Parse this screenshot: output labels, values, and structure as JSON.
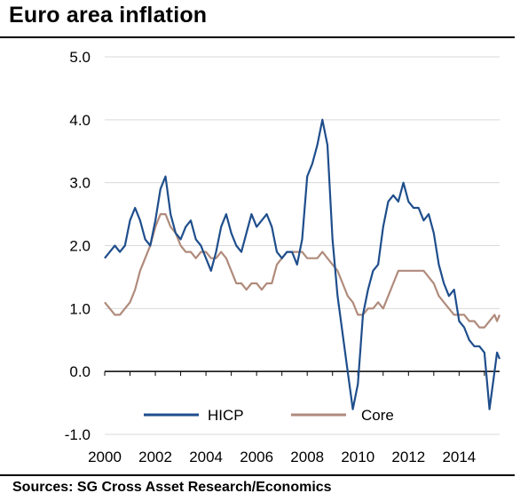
{
  "title": "Euro area inflation",
  "source": "Sources: SG Cross Asset Research/Economics",
  "colors": {
    "hicp": "#1f4e8c",
    "core": "#b08b7c",
    "grid": "#d9d9d9",
    "axis": "#000000"
  },
  "chart_data": {
    "type": "line",
    "title": "Euro area inflation",
    "xlabel": "",
    "ylabel": "",
    "xlim": [
      2000,
      2015.6
    ],
    "ylim": [
      -1.0,
      5.0
    ],
    "x_ticks": [
      "2000",
      "2002",
      "2004",
      "2006",
      "2008",
      "2010",
      "2012",
      "2014"
    ],
    "y_ticks": [
      "5.0",
      "4.0",
      "3.0",
      "2.0",
      "1.0",
      "0.0",
      "-1.0"
    ],
    "grid": "horizontal",
    "legend": "bottom-center",
    "series": [
      {
        "name": "HICP",
        "points": [
          [
            2000.0,
            1.8
          ],
          [
            2000.2,
            1.9
          ],
          [
            2000.4,
            2.0
          ],
          [
            2000.6,
            1.9
          ],
          [
            2000.8,
            2.0
          ],
          [
            2001.0,
            2.4
          ],
          [
            2001.2,
            2.6
          ],
          [
            2001.4,
            2.4
          ],
          [
            2001.6,
            2.1
          ],
          [
            2001.8,
            2.0
          ],
          [
            2002.0,
            2.4
          ],
          [
            2002.2,
            2.9
          ],
          [
            2002.4,
            3.1
          ],
          [
            2002.6,
            2.5
          ],
          [
            2002.8,
            2.2
          ],
          [
            2003.0,
            2.1
          ],
          [
            2003.2,
            2.3
          ],
          [
            2003.4,
            2.4
          ],
          [
            2003.6,
            2.1
          ],
          [
            2003.8,
            2.0
          ],
          [
            2004.0,
            1.8
          ],
          [
            2004.2,
            1.6
          ],
          [
            2004.4,
            1.9
          ],
          [
            2004.6,
            2.3
          ],
          [
            2004.8,
            2.5
          ],
          [
            2005.0,
            2.2
          ],
          [
            2005.2,
            2.0
          ],
          [
            2005.4,
            1.9
          ],
          [
            2005.6,
            2.2
          ],
          [
            2005.8,
            2.5
          ],
          [
            2006.0,
            2.3
          ],
          [
            2006.2,
            2.4
          ],
          [
            2006.4,
            2.5
          ],
          [
            2006.6,
            2.3
          ],
          [
            2006.8,
            1.9
          ],
          [
            2007.0,
            1.8
          ],
          [
            2007.2,
            1.9
          ],
          [
            2007.4,
            1.9
          ],
          [
            2007.6,
            1.7
          ],
          [
            2007.8,
            2.1
          ],
          [
            2008.0,
            3.1
          ],
          [
            2008.2,
            3.3
          ],
          [
            2008.4,
            3.6
          ],
          [
            2008.6,
            4.0
          ],
          [
            2008.8,
            3.6
          ],
          [
            2009.0,
            2.1
          ],
          [
            2009.2,
            1.2
          ],
          [
            2009.4,
            0.6
          ],
          [
            2009.6,
            0.0
          ],
          [
            2009.8,
            -0.6
          ],
          [
            2010.0,
            -0.2
          ],
          [
            2010.2,
            0.9
          ],
          [
            2010.4,
            1.3
          ],
          [
            2010.6,
            1.6
          ],
          [
            2010.8,
            1.7
          ],
          [
            2011.0,
            2.3
          ],
          [
            2011.2,
            2.7
          ],
          [
            2011.4,
            2.8
          ],
          [
            2011.6,
            2.7
          ],
          [
            2011.8,
            3.0
          ],
          [
            2012.0,
            2.7
          ],
          [
            2012.2,
            2.6
          ],
          [
            2012.4,
            2.6
          ],
          [
            2012.6,
            2.4
          ],
          [
            2012.8,
            2.5
          ],
          [
            2013.0,
            2.2
          ],
          [
            2013.2,
            1.7
          ],
          [
            2013.4,
            1.4
          ],
          [
            2013.6,
            1.2
          ],
          [
            2013.8,
            1.3
          ],
          [
            2014.0,
            0.8
          ],
          [
            2014.2,
            0.7
          ],
          [
            2014.4,
            0.5
          ],
          [
            2014.6,
            0.4
          ],
          [
            2014.8,
            0.4
          ],
          [
            2015.0,
            0.3
          ],
          [
            2015.2,
            -0.6
          ],
          [
            2015.4,
            0.0
          ],
          [
            2015.5,
            0.3
          ],
          [
            2015.6,
            0.2
          ]
        ]
      },
      {
        "name": "Core",
        "points": [
          [
            2000.0,
            1.1
          ],
          [
            2000.2,
            1.0
          ],
          [
            2000.4,
            0.9
          ],
          [
            2000.6,
            0.9
          ],
          [
            2000.8,
            1.0
          ],
          [
            2001.0,
            1.1
          ],
          [
            2001.2,
            1.3
          ],
          [
            2001.4,
            1.6
          ],
          [
            2001.6,
            1.8
          ],
          [
            2001.8,
            2.0
          ],
          [
            2002.0,
            2.3
          ],
          [
            2002.2,
            2.5
          ],
          [
            2002.4,
            2.5
          ],
          [
            2002.6,
            2.3
          ],
          [
            2002.8,
            2.2
          ],
          [
            2003.0,
            2.0
          ],
          [
            2003.2,
            1.9
          ],
          [
            2003.4,
            1.9
          ],
          [
            2003.6,
            1.8
          ],
          [
            2003.8,
            1.9
          ],
          [
            2004.0,
            1.9
          ],
          [
            2004.2,
            1.8
          ],
          [
            2004.4,
            1.8
          ],
          [
            2004.6,
            1.9
          ],
          [
            2004.8,
            1.8
          ],
          [
            2005.0,
            1.6
          ],
          [
            2005.2,
            1.4
          ],
          [
            2005.4,
            1.4
          ],
          [
            2005.6,
            1.3
          ],
          [
            2005.8,
            1.4
          ],
          [
            2006.0,
            1.4
          ],
          [
            2006.2,
            1.3
          ],
          [
            2006.4,
            1.4
          ],
          [
            2006.6,
            1.4
          ],
          [
            2006.8,
            1.7
          ],
          [
            2007.0,
            1.8
          ],
          [
            2007.2,
            1.9
          ],
          [
            2007.4,
            1.9
          ],
          [
            2007.6,
            1.9
          ],
          [
            2007.8,
            1.9
          ],
          [
            2008.0,
            1.8
          ],
          [
            2008.2,
            1.8
          ],
          [
            2008.4,
            1.8
          ],
          [
            2008.6,
            1.9
          ],
          [
            2008.8,
            1.8
          ],
          [
            2009.0,
            1.7
          ],
          [
            2009.2,
            1.6
          ],
          [
            2009.4,
            1.4
          ],
          [
            2009.6,
            1.2
          ],
          [
            2009.8,
            1.1
          ],
          [
            2010.0,
            0.9
          ],
          [
            2010.2,
            0.9
          ],
          [
            2010.4,
            1.0
          ],
          [
            2010.6,
            1.0
          ],
          [
            2010.8,
            1.1
          ],
          [
            2011.0,
            1.0
          ],
          [
            2011.2,
            1.2
          ],
          [
            2011.4,
            1.4
          ],
          [
            2011.6,
            1.6
          ],
          [
            2011.8,
            1.6
          ],
          [
            2012.0,
            1.6
          ],
          [
            2012.2,
            1.6
          ],
          [
            2012.4,
            1.6
          ],
          [
            2012.6,
            1.6
          ],
          [
            2012.8,
            1.5
          ],
          [
            2013.0,
            1.4
          ],
          [
            2013.2,
            1.2
          ],
          [
            2013.4,
            1.1
          ],
          [
            2013.6,
            1.0
          ],
          [
            2013.8,
            0.9
          ],
          [
            2014.0,
            0.9
          ],
          [
            2014.2,
            0.9
          ],
          [
            2014.4,
            0.8
          ],
          [
            2014.6,
            0.8
          ],
          [
            2014.8,
            0.7
          ],
          [
            2015.0,
            0.7
          ],
          [
            2015.2,
            0.8
          ],
          [
            2015.4,
            0.9
          ],
          [
            2015.5,
            0.8
          ],
          [
            2015.6,
            0.9
          ]
        ]
      }
    ]
  }
}
